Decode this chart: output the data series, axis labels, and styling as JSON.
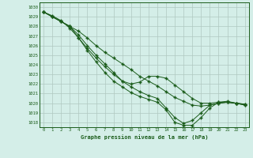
{
  "title": "Graphe pression niveau de la mer (hPa)",
  "bg_color": "#d4eee8",
  "grid_color": "#b0c8c0",
  "line_color": "#1a5c1a",
  "ylim": [
    1017.5,
    1030.5
  ],
  "xlim": [
    -0.5,
    23.5
  ],
  "yticks": [
    1018,
    1019,
    1020,
    1021,
    1022,
    1023,
    1024,
    1025,
    1026,
    1027,
    1028,
    1029,
    1030
  ],
  "xticks": [
    0,
    1,
    2,
    3,
    4,
    5,
    6,
    7,
    8,
    9,
    10,
    11,
    12,
    13,
    14,
    15,
    16,
    17,
    18,
    19,
    20,
    21,
    22,
    23
  ],
  "series": [
    [
      1029.5,
      1029.0,
      1028.5,
      1028.0,
      1027.5,
      1026.8,
      1026.0,
      1025.3,
      1024.7,
      1024.1,
      1023.5,
      1022.8,
      1022.3,
      1021.8,
      1021.2,
      1020.6,
      1020.2,
      1019.8,
      1019.7,
      1019.8,
      1020.0,
      1020.1,
      1020.0,
      1019.9
    ],
    [
      1029.5,
      1029.1,
      1028.6,
      1027.8,
      1026.8,
      1025.7,
      1024.7,
      1023.8,
      1023.0,
      1022.3,
      1022.0,
      1022.2,
      1022.8,
      1022.8,
      1022.6,
      1021.9,
      1021.2,
      1020.5,
      1020.0,
      1020.0,
      1020.1,
      1020.1,
      1020.0,
      1019.9
    ],
    [
      1029.5,
      1029.0,
      1028.5,
      1028.0,
      1027.1,
      1026.0,
      1025.0,
      1024.1,
      1023.2,
      1022.3,
      1021.7,
      1021.2,
      1020.8,
      1020.5,
      1019.5,
      1018.5,
      1017.9,
      1018.2,
      1019.0,
      1019.8,
      1020.0,
      1020.1,
      1020.0,
      1019.8
    ],
    [
      1029.5,
      1029.0,
      1028.5,
      1028.0,
      1026.8,
      1025.5,
      1024.3,
      1023.2,
      1022.3,
      1021.7,
      1021.1,
      1020.7,
      1020.4,
      1020.1,
      1019.3,
      1018.0,
      1017.7,
      1017.7,
      1018.5,
      1019.5,
      1020.1,
      1020.2,
      1020.0,
      1019.8
    ]
  ]
}
